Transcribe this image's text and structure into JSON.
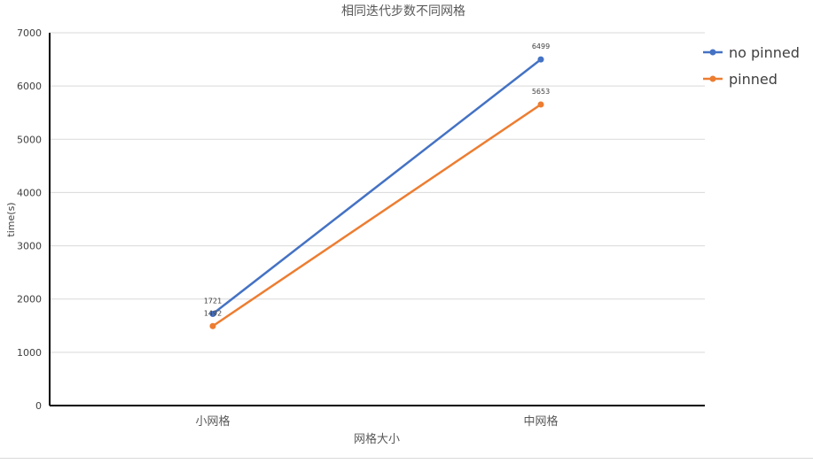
{
  "chart_data": {
    "type": "line",
    "title": "相同迭代步数不同网格",
    "xlabel": "网格大小",
    "ylabel": "time(s)",
    "categories": [
      "小网格",
      "中网格"
    ],
    "ylim": [
      0,
      7000
    ],
    "yticks": [
      0,
      1000,
      2000,
      3000,
      4000,
      5000,
      6000,
      7000
    ],
    "grid": true,
    "legend_position": "right",
    "series": [
      {
        "name": "no pinned",
        "values": [
          1721,
          6499
        ],
        "color": "#4472c4"
      },
      {
        "name": "pinned",
        "values": [
          1492,
          5653
        ],
        "color": "#ed7d31"
      }
    ]
  }
}
